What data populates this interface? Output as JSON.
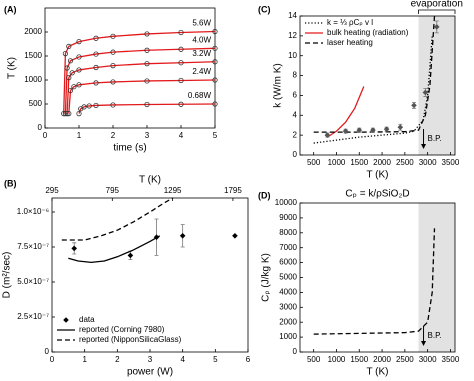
{
  "chart_data": [
    {
      "type": "line",
      "panel": "(A)",
      "xlabel": "time (s)",
      "ylabel": "T (K)",
      "xlim": [
        0,
        5
      ],
      "xticks": [
        0,
        1,
        2,
        3,
        4,
        5
      ],
      "ylim": [
        0,
        2500
      ],
      "yticks": [
        0,
        500,
        1000,
        1500,
        2000
      ],
      "legend": "inline",
      "series": [
        {
          "name": "5.6W",
          "color": "#e31a1c",
          "line": "solid",
          "marker": "circle",
          "marker_color": "#333333",
          "x": [
            0.55,
            0.6,
            0.7,
            1,
            1.5,
            2,
            3,
            4,
            5
          ],
          "values": [
            300,
            1550,
            1700,
            1800,
            1870,
            1910,
            1960,
            1990,
            2010
          ]
        },
        {
          "name": "4.0W",
          "color": "#e31a1c",
          "line": "solid",
          "marker": "circle",
          "marker_color": "#333333",
          "x": [
            0.6,
            0.65,
            0.75,
            1,
            1.5,
            2,
            3,
            4,
            5
          ],
          "values": [
            300,
            1250,
            1400,
            1480,
            1540,
            1580,
            1620,
            1640,
            1660
          ]
        },
        {
          "name": "3.2W",
          "color": "#e31a1c",
          "line": "solid",
          "marker": "circle",
          "marker_color": "#333333",
          "x": [
            0.65,
            0.7,
            0.8,
            1,
            1.5,
            2,
            3,
            4,
            5
          ],
          "values": [
            300,
            1050,
            1150,
            1210,
            1260,
            1300,
            1340,
            1360,
            1380
          ]
        },
        {
          "name": "2.4W",
          "color": "#e31a1c",
          "line": "solid",
          "marker": "circle",
          "marker_color": "#333333",
          "x": [
            0.7,
            0.75,
            0.85,
            1,
            1.5,
            2,
            3,
            4,
            5
          ],
          "values": [
            300,
            780,
            860,
            900,
            940,
            960,
            980,
            990,
            1000
          ]
        },
        {
          "name": "0.68W",
          "color": "#e31a1c",
          "line": "solid",
          "marker": "circle",
          "marker_color": "#333333",
          "x": [
            1,
            1.05,
            1.15,
            1.3,
            1.5,
            2,
            3,
            4,
            5
          ],
          "values": [
            300,
            400,
            440,
            460,
            470,
            480,
            490,
            495,
            500
          ]
        }
      ]
    },
    {
      "type": "line",
      "panel": "(C)",
      "xlabel": "T (K)",
      "ylabel": "k (W/m K)",
      "xlim": [
        200,
        3600
      ],
      "xticks": [
        500,
        1000,
        1500,
        2000,
        2500,
        3000,
        3500
      ],
      "ylim": [
        0,
        14
      ],
      "yticks": [
        0,
        2,
        4,
        6,
        8,
        10,
        12,
        14
      ],
      "span": [
        2800,
        3600
      ],
      "span_label": "evaporation",
      "bp_label": "B.P.",
      "legend": "upper left",
      "series": [
        {
          "name": "k = ⅓ ρCₚ v l",
          "color": "#000000",
          "line": "dotted",
          "x": [
            500,
            1000,
            1500,
            2000,
            2500,
            2700,
            2900,
            3000,
            3100
          ],
          "values": [
            1.2,
            1.5,
            1.8,
            2.0,
            2.2,
            2.4,
            3.5,
            6,
            12
          ]
        },
        {
          "name": "bulk heating (radiation)",
          "color": "#e31a1c",
          "line": "solid",
          "x": [
            800,
            1000,
            1200,
            1400,
            1600
          ],
          "values": [
            1.8,
            2.4,
            3.3,
            4.7,
            6.9
          ]
        },
        {
          "name": "laser heating",
          "color": "#000000",
          "line": "dashed",
          "x": [
            500,
            1500,
            2500,
            2800,
            2950,
            3050,
            3150
          ],
          "values": [
            2.3,
            2.3,
            2.35,
            2.5,
            4,
            7,
            14
          ]
        },
        {
          "color": "#555555",
          "line": "none",
          "marker": "diamond",
          "marker_color": "#555555",
          "x": [
            800,
            1200,
            1500,
            1800,
            2100,
            2400,
            2700,
            2950,
            3200
          ],
          "values": [
            2.0,
            2.4,
            2.5,
            2.5,
            2.6,
            2.8,
            5.0,
            6.3,
            12.9
          ],
          "errors": [
            0.2,
            0.2,
            0.2,
            0.2,
            0.2,
            0.3,
            0.3,
            0.4,
            0.6
          ]
        }
      ]
    },
    {
      "type": "line",
      "panel": "(B)",
      "xlabel": "power (W)",
      "ylabel": "D (m²/sec)",
      "x2label": "T (K)",
      "xlim": [
        0,
        6
      ],
      "xticks": [
        0,
        1,
        2,
        3,
        4,
        5,
        6
      ],
      "x2lim": [
        295,
        1920
      ],
      "x2ticks": [
        295,
        795,
        1295,
        1795
      ],
      "ylim": [
        0,
        1.1e-06
      ],
      "yticks": [
        0,
        {
          "value": 2.5e-07,
          "label": "2.5×10⁻⁷"
        },
        {
          "value": 5e-07,
          "label": "5.0×10⁻⁷"
        },
        {
          "value": 7.5e-07,
          "label": "7.5×10⁻⁷"
        },
        {
          "value": 1e-06,
          "label": "1.0×10⁻⁶"
        }
      ],
      "legend": "lower left",
      "series": [
        {
          "name": "data",
          "color": "#000000",
          "line": "none",
          "marker": "diamond",
          "marker_color": "#000000",
          "x": [
            0.68,
            2.4,
            3.2,
            4.0,
            5.6
          ],
          "values": [
            7.4e-07,
            6.9e-07,
            8.2e-07,
            8.3e-07,
            8.3e-07
          ],
          "errors": [
            4e-08,
            3e-08,
            1.3e-07,
            8e-08,
            null
          ]
        },
        {
          "name": "reported (Corning 7980)",
          "color": "#000000",
          "line": "solid",
          "x": [
            0.5,
            0.8,
            1.2,
            1.6,
            2.0,
            2.5,
            3.0,
            3.3
          ],
          "values": [
            6.7e-07,
            6.5e-07,
            6.4e-07,
            6.5e-07,
            6.8e-07,
            7.3e-07,
            7.9e-07,
            8.3e-07
          ]
        },
        {
          "name": "reported (NipponSilicaGlass)",
          "color": "#000000",
          "line": "dashed",
          "x": [
            0.3,
            1.0,
            1.5,
            2.0,
            2.5,
            3.0,
            3.4,
            3.7
          ],
          "values": [
            8e-07,
            8e-07,
            8.3e-07,
            8.7e-07,
            9.3e-07,
            1e-06,
            1.06e-06,
            1.1e-06
          ]
        }
      ]
    },
    {
      "type": "line",
      "panel": "(D)",
      "title": "Cₚ = k/ρSiO₂D",
      "xlabel": "T (K)",
      "ylabel": "Cₚ (J/kg K)",
      "xlim": [
        200,
        3600
      ],
      "xticks": [
        500,
        1000,
        1500,
        2000,
        2500,
        3000,
        3500
      ],
      "ylim": [
        0,
        10000
      ],
      "yticks": [
        0,
        1000,
        2000,
        3000,
        4000,
        5000,
        6000,
        7000,
        8000,
        9000,
        10000
      ],
      "span": [
        2800,
        3600
      ],
      "bp_label": "B.P.",
      "series": [
        {
          "color": "#000000",
          "line": "dashed",
          "x": [
            500,
            1500,
            2500,
            2800,
            3000,
            3100,
            3150
          ],
          "values": [
            1200,
            1250,
            1300,
            1400,
            2000,
            4000,
            8300
          ]
        }
      ]
    }
  ]
}
